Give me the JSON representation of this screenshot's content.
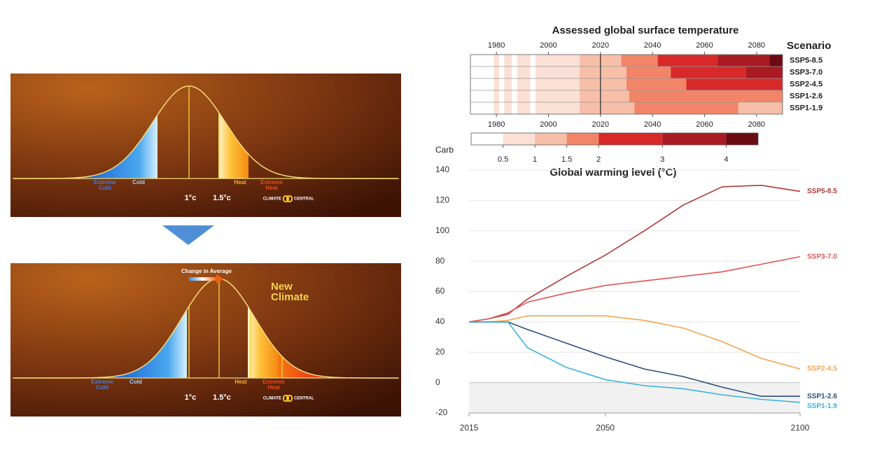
{
  "illustrations": {
    "before": {
      "extreme_cold": [
        "Extreme",
        "Cold"
      ],
      "cold": "Cold",
      "heat": "Heat",
      "extreme_heat": [
        "Extreme",
        "Heat"
      ],
      "one_degree": "1°c",
      "one_five_degree": "1.5°c",
      "logo_left": "CLIMATE",
      "logo_right": "CENTRAL"
    },
    "after": {
      "change": "Change in Average",
      "new_climate": [
        "New",
        "Climate"
      ],
      "extreme_cold": [
        "Extreme",
        "Cold"
      ],
      "cold": "Cold",
      "heat": "Heat",
      "extreme_heat": [
        "Extreme",
        "Heat"
      ],
      "one_degree": "1°c",
      "one_five_degree": "1.5°c",
      "logo_left": "CLIMATE",
      "logo_right": "CENTRAL"
    }
  },
  "chart_data": [
    {
      "type": "heatmap",
      "title": "Assessed global surface temperature",
      "row_header": "Scenario",
      "xlim": [
        1970,
        2090
      ],
      "xticks": [
        1980,
        2000,
        2020,
        2040,
        2060,
        2080
      ],
      "divider": 2020,
      "historical_segments": [
        {
          "start": 1970,
          "end": 1979,
          "value": 0.25
        },
        {
          "start": 1979,
          "end": 1981,
          "value": 0.75
        },
        {
          "start": 1981,
          "end": 1983,
          "value": 0.25
        },
        {
          "start": 1983,
          "end": 1986,
          "value": 0.75
        },
        {
          "start": 1986,
          "end": 1988,
          "value": 0.25
        },
        {
          "start": 1988,
          "end": 1993,
          "value": 0.75
        },
        {
          "start": 1993,
          "end": 1995,
          "value": 0.25
        },
        {
          "start": 1995,
          "end": 2012,
          "value": 0.75
        },
        {
          "start": 2012,
          "end": 2020,
          "value": 1.25
        }
      ],
      "rows": [
        {
          "name": "SSP5-8.5",
          "segments": [
            {
              "start": 2020,
              "end": 2028,
              "value": 1.25
            },
            {
              "start": 2028,
              "end": 2042,
              "value": 1.75
            },
            {
              "start": 2042,
              "end": 2065,
              "value": 2.5
            },
            {
              "start": 2065,
              "end": 2085,
              "value": 3.5
            },
            {
              "start": 2085,
              "end": 2090,
              "value": 4.25
            }
          ]
        },
        {
          "name": "SSP3-7.0",
          "segments": [
            {
              "start": 2020,
              "end": 2030,
              "value": 1.25
            },
            {
              "start": 2030,
              "end": 2047,
              "value": 1.75
            },
            {
              "start": 2047,
              "end": 2076,
              "value": 2.5
            },
            {
              "start": 2076,
              "end": 2090,
              "value": 3.5
            }
          ]
        },
        {
          "name": "SSP2-4.5",
          "segments": [
            {
              "start": 2020,
              "end": 2030,
              "value": 1.25
            },
            {
              "start": 2030,
              "end": 2053,
              "value": 1.75
            },
            {
              "start": 2053,
              "end": 2090,
              "value": 2.5
            }
          ]
        },
        {
          "name": "SSP1-2.6",
          "segments": [
            {
              "start": 2020,
              "end": 2031,
              "value": 1.25
            },
            {
              "start": 2031,
              "end": 2090,
              "value": 1.75
            }
          ]
        },
        {
          "name": "SSP1-1.9",
          "segments": [
            {
              "start": 2020,
              "end": 2033,
              "value": 1.25
            },
            {
              "start": 2033,
              "end": 2073,
              "value": 1.75
            },
            {
              "start": 2073,
              "end": 2090,
              "value": 1.25
            }
          ]
        }
      ],
      "colorbar": {
        "title": "Global warming level (°C)",
        "lim": [
          0,
          4.5
        ],
        "ticks": [
          0.5,
          1,
          1.5,
          2,
          3,
          4
        ],
        "colors": [
          "#ffffff",
          "#fbe0d5",
          "#f7bfa8",
          "#f28568",
          "#d7292a",
          "#a91a22",
          "#6a0a12"
        ]
      }
    },
    {
      "type": "line",
      "ylabel": "Carb",
      "x": [
        2015,
        2020,
        2025,
        2030,
        2040,
        2050,
        2060,
        2070,
        2080,
        2090,
        2100
      ],
      "xlim": [
        2015,
        2100
      ],
      "xticks": [
        2015,
        2050,
        2100
      ],
      "ylim": [
        -20,
        140
      ],
      "yticks": [
        -20,
        0,
        20,
        40,
        60,
        80,
        100,
        120,
        140
      ],
      "grid": true,
      "shade_negative": true,
      "series": [
        {
          "name": "SSP5-8.5",
          "color": "#b03a3a",
          "values": [
            40,
            42,
            45,
            55,
            70,
            84,
            100,
            117,
            129,
            130,
            126
          ]
        },
        {
          "name": "SSP3-7.0",
          "color": "#e05555",
          "values": [
            40,
            42,
            46,
            53,
            59,
            64,
            67,
            70,
            73,
            78,
            83
          ]
        },
        {
          "name": "SSP2-4.5",
          "color": "#f3a552",
          "values": [
            40,
            40,
            41,
            44,
            44,
            44,
            41,
            36,
            27,
            16,
            9
          ]
        },
        {
          "name": "SSP1-2.6",
          "color": "#2c4f7c",
          "values": [
            40,
            40,
            40,
            35,
            26,
            17,
            9,
            4,
            -3,
            -9,
            -9
          ]
        },
        {
          "name": "SSP1-1.9",
          "color": "#39b4e0",
          "values": [
            40,
            40,
            40,
            23,
            10,
            2,
            -2,
            -4,
            -8,
            -11,
            -13
          ]
        }
      ]
    }
  ]
}
